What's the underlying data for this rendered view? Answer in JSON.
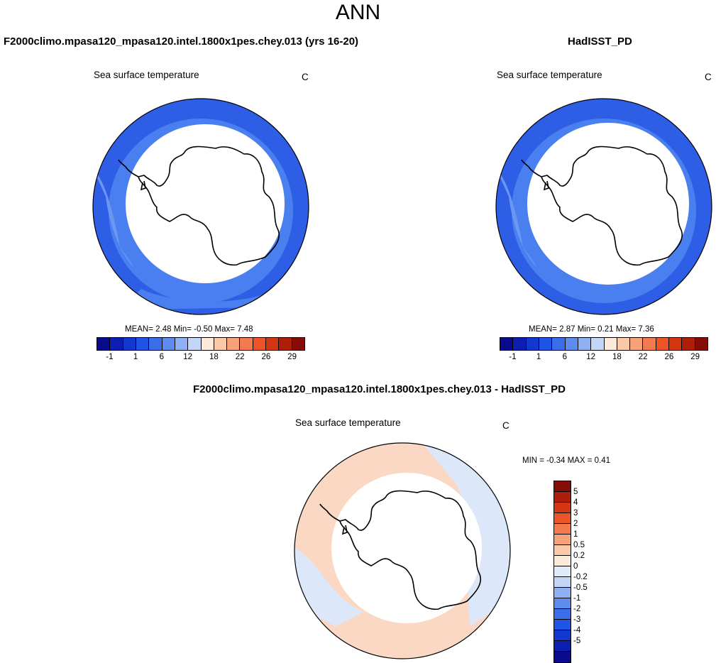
{
  "title": "ANN",
  "panels": [
    {
      "title": "F2000climo.mpasa120_mpasa120.intel.1800x1pes.chey.013 (yrs 16-20)",
      "subtitle": "Sea surface temperature",
      "units": "C",
      "stats": "MEAN=  2.48  Min=  -0.50  Max=  7.48"
    },
    {
      "title": "HadISST_PD",
      "subtitle": "Sea surface temperature",
      "units": "C",
      "stats": "MEAN=  2.87  Min=  0.21  Max=  7.36"
    },
    {
      "title": "F2000climo.mpasa120_mpasa120.intel.1800x1pes.chey.013 - HadISST_PD",
      "subtitle": "Sea surface temperature",
      "units": "C",
      "stats": "MIN =  -0.34 MAX =  0.41"
    }
  ],
  "colorbar_main": {
    "colors": [
      "#0a0a8c",
      "#0c1fb0",
      "#1238d0",
      "#1f55e6",
      "#3a6ee8",
      "#5e8cee",
      "#8fb0f2",
      "#c3d6f7",
      "#fbe9da",
      "#f9c9a8",
      "#f6a27a",
      "#f27a4e",
      "#ec5326",
      "#d43613",
      "#ad1f0b",
      "#850c07"
    ],
    "tick_labels": [
      "-1",
      "1",
      "6",
      "12",
      "18",
      "22",
      "26",
      "29"
    ]
  },
  "colorbar_diff": {
    "colors": [
      "#850c07",
      "#ad1f0b",
      "#d43613",
      "#ec5326",
      "#f27a4e",
      "#f6a27a",
      "#f9c9a8",
      "#fbe9da",
      "#e0ebf9",
      "#c3d6f7",
      "#8fb0f2",
      "#5e8cee",
      "#3a6ee8",
      "#1f55e6",
      "#1238d0",
      "#0c1fb0",
      "#0a0a8c"
    ],
    "tick_labels": [
      "5",
      "4",
      "3",
      "2",
      "1",
      "0.5",
      "0.2",
      "0",
      "-0.2",
      "-0.5",
      "-1",
      "-2",
      "-3",
      "-4",
      "-5"
    ]
  },
  "map_colors": {
    "ocean_band_1": "#2f5ee6",
    "ocean_band_2": "#4a7ff0",
    "ocean_band_3": "#6b96f2",
    "diff_warm": "#fbd8c3",
    "diff_cool": "#dce8fa",
    "land": "#ffffff",
    "coast": "#000000"
  }
}
